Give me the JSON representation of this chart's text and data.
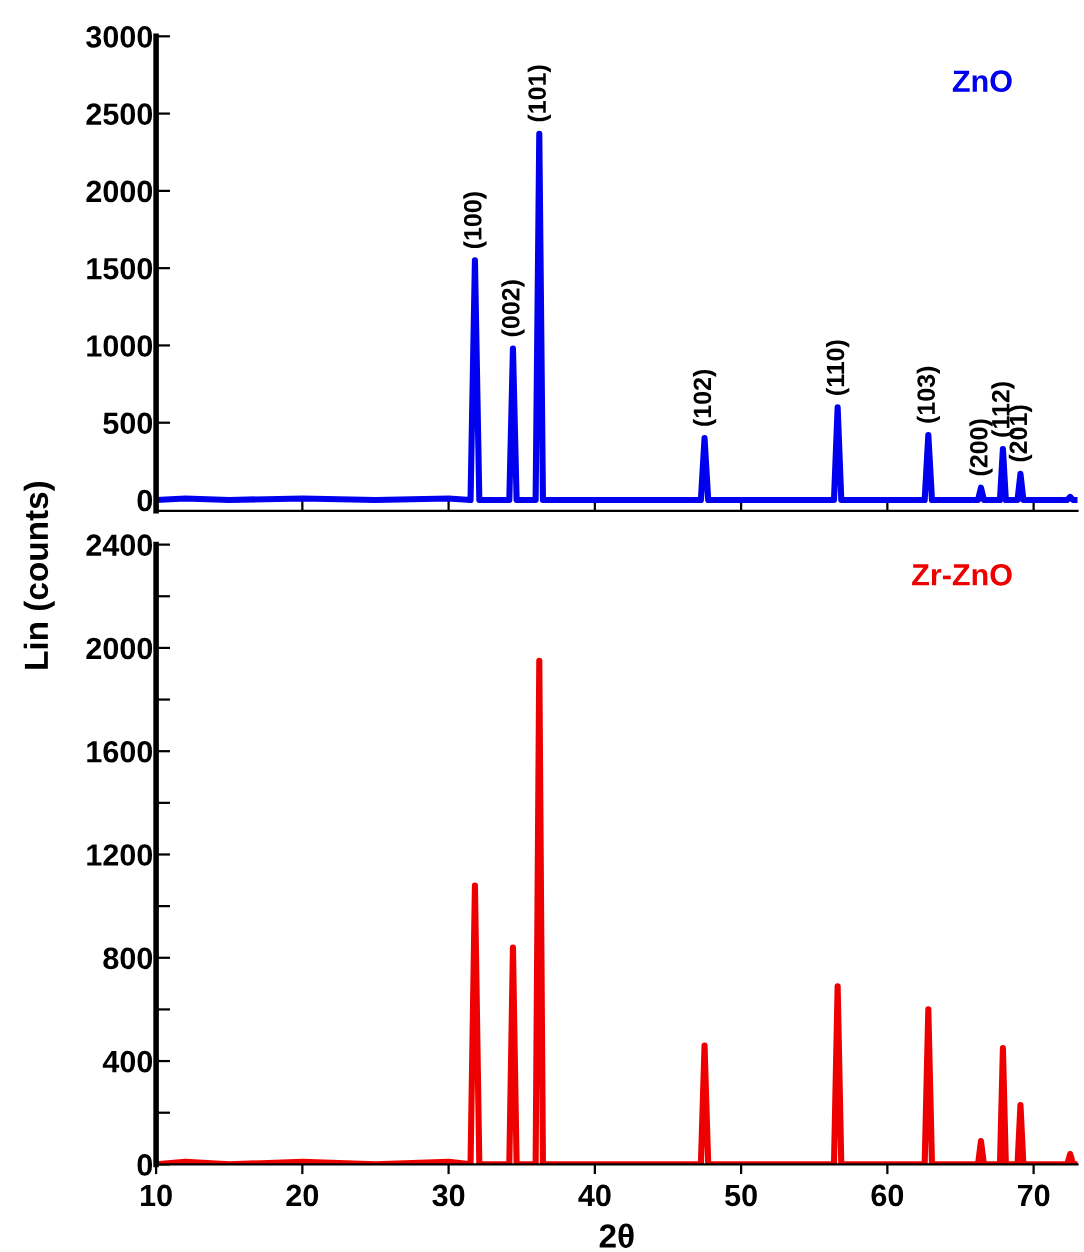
{
  "chart_data": [
    {
      "type": "line",
      "xlim": [
        10,
        73
      ],
      "xticks": [
        10,
        20,
        30,
        40,
        50,
        60,
        70
      ],
      "ylim": [
        -70,
        3000
      ],
      "yticks": [
        0,
        500,
        1000,
        1500,
        2000,
        2500,
        3000
      ],
      "tick_labels": "y",
      "grid": false,
      "legend": false,
      "marker": "none",
      "line_style": "solid",
      "series": [
        {
          "name": "ZnO",
          "color": "#0000ee",
          "x": [
            10,
            12,
            15,
            20,
            25,
            30,
            31.5,
            31.8,
            32.1,
            34.15,
            34.4,
            34.65,
            35.95,
            36.2,
            36.45,
            40,
            47.25,
            47.5,
            47.75,
            52,
            56.35,
            56.6,
            56.85,
            62.55,
            62.8,
            63.05,
            66.2,
            66.4,
            66.6,
            67.7,
            67.9,
            68.1,
            68.9,
            69.1,
            69.3,
            72.3,
            72.5,
            72.7,
            73
          ],
          "values": [
            0,
            10,
            0,
            10,
            0,
            10,
            0,
            1550,
            0,
            0,
            980,
            0,
            0,
            2370,
            0,
            0,
            0,
            400,
            0,
            0,
            0,
            600,
            0,
            0,
            420,
            0,
            0,
            80,
            0,
            0,
            330,
            0,
            0,
            170,
            0,
            0,
            20,
            0,
            0
          ]
        }
      ],
      "annotations": [
        {
          "text": "(100)",
          "x": 31.8,
          "y": 1550
        },
        {
          "text": "(002)",
          "x": 34.4,
          "y": 980
        },
        {
          "text": "(101)",
          "x": 36.2,
          "y": 2370
        },
        {
          "text": "(102)",
          "x": 47.5,
          "y": 400
        },
        {
          "text": "(110)",
          "x": 56.6,
          "y": 600
        },
        {
          "text": "(103)",
          "x": 62.8,
          "y": 420
        },
        {
          "text": "(200)",
          "x": 66.4,
          "y": 80
        },
        {
          "text": "(112)",
          "x": 67.9,
          "y": 330
        },
        {
          "text": "(201)",
          "x": 69.1,
          "y": 170
        }
      ]
    },
    {
      "type": "line",
      "xlim": [
        10,
        73
      ],
      "ylim": [
        0,
        2400
      ],
      "xticks": [
        10,
        20,
        30,
        40,
        50,
        60,
        70
      ],
      "yticks": [
        0,
        {
          "value": 200,
          "label": null
        },
        400,
        {
          "value": 600,
          "label": null
        },
        800,
        {
          "value": 1000,
          "label": null
        },
        1200,
        {
          "value": 1400,
          "label": null
        },
        1600,
        {
          "value": 1800,
          "label": null
        },
        2000,
        {
          "value": 2200,
          "label": null
        },
        2400
      ],
      "xlabel": "2θ",
      "ylabel": "Lin (counts)",
      "grid": false,
      "legend": false,
      "marker": "none",
      "line_style": "solid",
      "series": [
        {
          "name": "Zr-ZnO",
          "color": "#ee0000",
          "x": [
            10,
            12,
            15,
            20,
            25,
            30,
            31.5,
            31.8,
            32.1,
            34.15,
            34.4,
            34.65,
            35.95,
            36.2,
            36.45,
            40,
            47.25,
            47.5,
            47.75,
            52,
            56.35,
            56.6,
            56.85,
            62.55,
            62.8,
            63.05,
            66.2,
            66.4,
            66.6,
            67.7,
            67.9,
            68.1,
            68.9,
            69.1,
            69.3,
            72.3,
            72.5,
            72.7,
            73
          ],
          "values": [
            0,
            10,
            0,
            10,
            0,
            10,
            0,
            1080,
            0,
            0,
            840,
            0,
            0,
            1950,
            0,
            0,
            0,
            460,
            0,
            0,
            0,
            690,
            0,
            0,
            600,
            0,
            0,
            90,
            0,
            0,
            450,
            0,
            0,
            230,
            0,
            0,
            40,
            0,
            0
          ]
        }
      ]
    }
  ]
}
